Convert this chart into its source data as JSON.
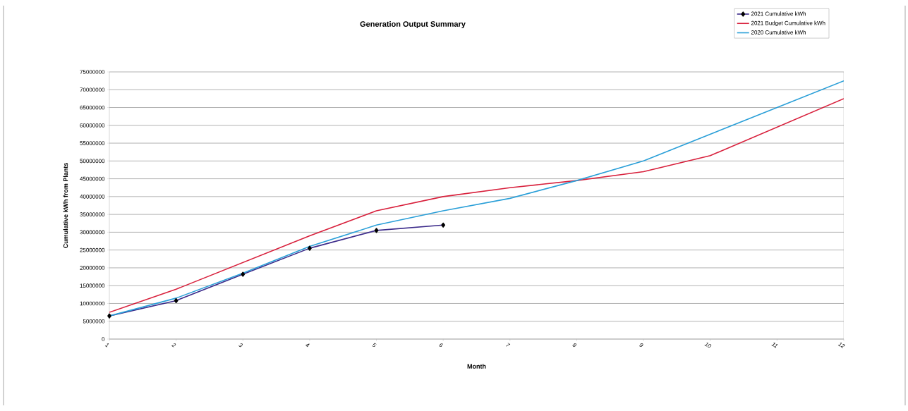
{
  "chart_data": {
    "type": "line",
    "title": "Generation Output Summary",
    "xlabel": "Month",
    "ylabel": "Cumulative kWh from Plants",
    "x": [
      1,
      2,
      3,
      4,
      5,
      6,
      7,
      8,
      9,
      10,
      11,
      12
    ],
    "series": [
      {
        "name": "2021 Cumulative kWh",
        "color": "#3b2a8a",
        "marker": "diamond",
        "values": [
          6500000,
          10800000,
          18200000,
          25500000,
          30500000,
          32000000,
          null,
          null,
          null,
          null,
          null,
          null
        ]
      },
      {
        "name": "2021 Budget Cumulative kWh",
        "color": "#d8203c",
        "marker": "none",
        "values": [
          7500000,
          14000000,
          21500000,
          29000000,
          36000000,
          40000000,
          42500000,
          44500000,
          47000000,
          51500000,
          59500000,
          67500000
        ]
      },
      {
        "name": "2020 Cumulative kWh",
        "color": "#2a9fd8",
        "marker": "none",
        "values": [
          6500000,
          11500000,
          18500000,
          26000000,
          32000000,
          36000000,
          39500000,
          44500000,
          50000000,
          57500000,
          65000000,
          72500000
        ]
      }
    ],
    "xlim": [
      1,
      12
    ],
    "xticks": [
      1,
      2,
      3,
      4,
      5,
      6,
      7,
      8,
      9,
      10,
      11,
      12
    ],
    "ylim": [
      0,
      75000000
    ],
    "yticks": [
      0,
      5000000,
      10000000,
      15000000,
      20000000,
      25000000,
      30000000,
      35000000,
      40000000,
      45000000,
      50000000,
      55000000,
      60000000,
      65000000,
      70000000,
      75000000
    ],
    "grid": "y",
    "legend": "top right"
  }
}
